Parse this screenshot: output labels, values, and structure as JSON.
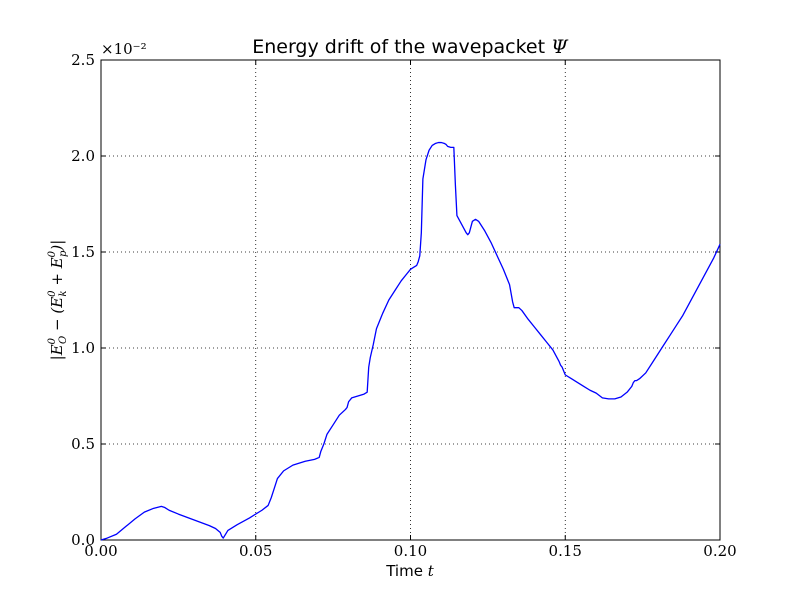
{
  "chart_data": {
    "type": "line",
    "title_text": "Energy drift of the wavepacket ",
    "title_symbol": "Ψ",
    "xlabel_text": "Time ",
    "xlabel_symbol": "t",
    "ylabel": "|E_O^0 − (E_k^0 + E_p^0)|",
    "ylabel_parts": {
      "bar_open": "|",
      "E": "E",
      "sup0": "0",
      "subO": "O",
      "minus": " − (",
      "subk": "k",
      "plus": " + ",
      "subp": "p",
      "close": ")|"
    },
    "y_scale_factor": "×10⁻²",
    "xlim": [
      0.0,
      0.2
    ],
    "ylim": [
      0.0,
      2.5
    ],
    "xticks": [
      0.0,
      0.05,
      0.1,
      0.15,
      0.2
    ],
    "xtick_labels": [
      "0.00",
      "0.05",
      "0.10",
      "0.15",
      "0.20"
    ],
    "yticks": [
      0.0,
      0.5,
      1.0,
      1.5,
      2.0,
      2.5
    ],
    "ytick_labels": [
      "0.0",
      "0.5",
      "1.0",
      "1.5",
      "2.0",
      "2.5"
    ],
    "grid": true,
    "series": [
      {
        "color": "#0000ff",
        "x": [
          0.0,
          0.002,
          0.005,
          0.008,
          0.011,
          0.014,
          0.017,
          0.0195,
          0.0205,
          0.022,
          0.025,
          0.03,
          0.035,
          0.037,
          0.0385,
          0.039,
          0.0395,
          0.041,
          0.044,
          0.048,
          0.052,
          0.054,
          0.055,
          0.056,
          0.057,
          0.059,
          0.062,
          0.066,
          0.069,
          0.0705,
          0.071,
          0.072,
          0.073,
          0.075,
          0.077,
          0.079,
          0.0795,
          0.08,
          0.081,
          0.083,
          0.085,
          0.086,
          0.0865,
          0.087,
          0.088,
          0.089,
          0.091,
          0.093,
          0.095,
          0.097,
          0.099,
          0.1,
          0.101,
          0.102,
          0.1025,
          0.103,
          0.1035,
          0.104,
          0.105,
          0.106,
          0.107,
          0.108,
          0.109,
          0.11,
          0.111,
          0.1115,
          0.112,
          0.113,
          0.114,
          0.1145,
          0.115,
          0.117,
          0.118,
          0.1185,
          0.119,
          0.1195,
          0.12,
          0.121,
          0.122,
          0.124,
          0.126,
          0.128,
          0.13,
          0.132,
          0.133,
          0.1335,
          0.134,
          0.1345,
          0.135,
          0.136,
          0.138,
          0.14,
          0.142,
          0.144,
          0.146,
          0.147,
          0.148,
          0.1485,
          0.149,
          0.15,
          0.152,
          0.154,
          0.156,
          0.158,
          0.16,
          0.162,
          0.164,
          0.166,
          0.168,
          0.17,
          0.1715,
          0.172,
          0.1725,
          0.173,
          0.174,
          0.176,
          0.178,
          0.18,
          0.182,
          0.184,
          0.186,
          0.188,
          0.19,
          0.192,
          0.194,
          0.196,
          0.198,
          0.2
        ],
        "values": [
          0.0,
          0.01,
          0.03,
          0.07,
          0.11,
          0.145,
          0.165,
          0.175,
          0.17,
          0.155,
          0.135,
          0.105,
          0.075,
          0.06,
          0.04,
          0.02,
          0.01,
          0.05,
          0.08,
          0.115,
          0.155,
          0.18,
          0.22,
          0.27,
          0.32,
          0.36,
          0.39,
          0.41,
          0.42,
          0.43,
          0.46,
          0.5,
          0.55,
          0.6,
          0.65,
          0.68,
          0.69,
          0.72,
          0.74,
          0.75,
          0.76,
          0.77,
          0.9,
          0.95,
          1.02,
          1.1,
          1.18,
          1.25,
          1.3,
          1.35,
          1.39,
          1.41,
          1.42,
          1.43,
          1.45,
          1.48,
          1.6,
          1.88,
          1.98,
          2.03,
          2.055,
          2.065,
          2.07,
          2.07,
          2.065,
          2.06,
          2.05,
          2.045,
          2.045,
          1.85,
          1.69,
          1.63,
          1.6,
          1.59,
          1.6,
          1.63,
          1.66,
          1.67,
          1.66,
          1.61,
          1.55,
          1.48,
          1.41,
          1.33,
          1.24,
          1.21,
          1.21,
          1.21,
          1.21,
          1.195,
          1.15,
          1.11,
          1.07,
          1.03,
          0.99,
          0.96,
          0.93,
          0.91,
          0.9,
          0.86,
          0.84,
          0.82,
          0.8,
          0.78,
          0.765,
          0.74,
          0.735,
          0.735,
          0.745,
          0.77,
          0.8,
          0.82,
          0.83,
          0.83,
          0.84,
          0.87,
          0.92,
          0.97,
          1.02,
          1.07,
          1.12,
          1.17,
          1.23,
          1.29,
          1.35,
          1.41,
          1.47,
          1.54
        ]
      }
    ]
  }
}
